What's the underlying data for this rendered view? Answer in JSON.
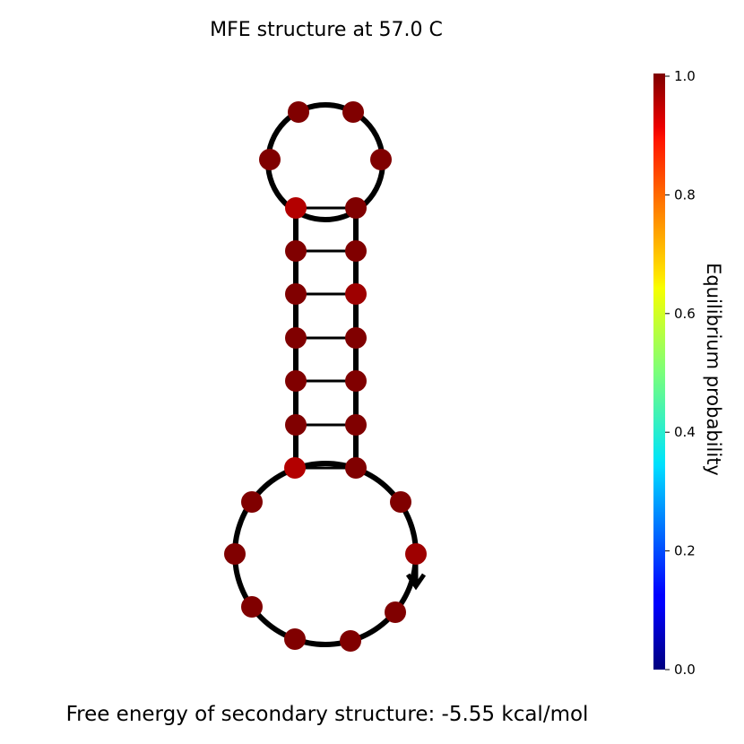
{
  "title": "MFE structure at 57.0 C",
  "footer": "Free energy of secondary structure: -5.55 kcal/mol",
  "colorbar": {
    "label": "Equilibrium probability",
    "ticks": [
      "1.0",
      "0.8",
      "0.6",
      "0.4",
      "0.2",
      "0.0"
    ]
  },
  "structure": {
    "strand_direction": "arrow pointing down at 3' end",
    "nucleotide_count": 26,
    "base_pair_count": 7,
    "nucleotide_probabilities": [
      0.95,
      1.0,
      1.0,
      1.0,
      1.0,
      1.0,
      1.0,
      0.97,
      1.0,
      1.0,
      1.0,
      1.0,
      1.0,
      0.97,
      1.0,
      1.0,
      1.0,
      1.0,
      1.0,
      1.0,
      0.95,
      1.0,
      1.0,
      1.0,
      1.0,
      1.0
    ]
  }
}
